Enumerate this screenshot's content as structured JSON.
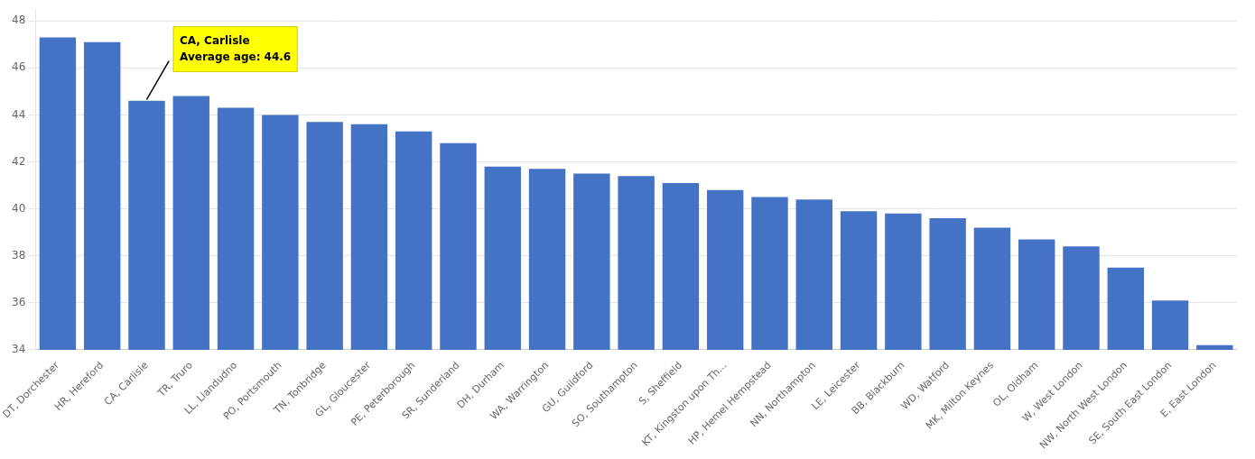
{
  "chart_data": {
    "type": "bar",
    "categories": [
      "DT, Dorchester",
      "HR, Hereford",
      "CA, Carlisle",
      "TR, Truro",
      "LL, Llandudno",
      "PO, Portsmouth",
      "TN, Tonbridge",
      "GL, Gloucester",
      "PE, Peterborough",
      "SR, Sunderland",
      "DH, Durham",
      "WA, Warrington",
      "GU, Guildford",
      "SO, Southampton",
      "S, Sheffield",
      "KT, Kingston upon Th...",
      "HP, Hemel Hempstead",
      "NN, Northampton",
      "LE, Leicester",
      "BB, Blackburn",
      "WD, Watford",
      "MK, Milton Keynes",
      "OL, Oldham",
      "W, West London",
      "NW, North West London",
      "SE, South East London",
      "E, East London"
    ],
    "values": [
      47.3,
      47.1,
      44.6,
      44.8,
      44.3,
      44.0,
      43.7,
      43.6,
      43.3,
      42.8,
      41.8,
      41.7,
      41.5,
      41.4,
      41.1,
      40.8,
      40.5,
      40.4,
      39.9,
      39.8,
      39.6,
      39.2,
      38.7,
      38.4,
      37.5,
      36.1,
      34.2
    ],
    "color": "#4472C4",
    "ylim": [
      34,
      48.5
    ],
    "yticks": [
      34,
      36,
      38,
      40,
      42,
      44,
      46,
      48
    ],
    "grid": true,
    "annotations": [
      {
        "text": "CA, Carlisle\nAverage age: 44.6",
        "x": "CA, Carlisle",
        "y": 44.6,
        "color": "#ffff00"
      }
    ]
  }
}
